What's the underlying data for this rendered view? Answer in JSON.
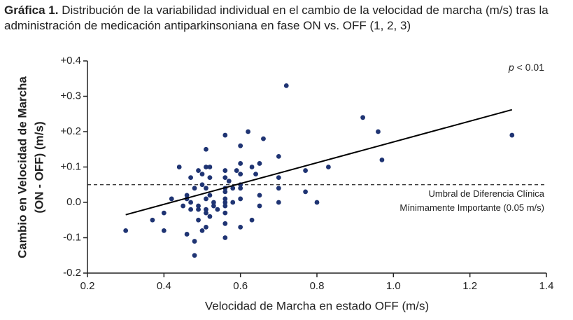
{
  "chart_data": {
    "type": "scatter",
    "title_label": "Gráfica 1.",
    "title": "Distribución de la variabilidad individual en el cambio de la velocidad de marcha (m/s) tras la administración de medicación antiparkinsoniana en fase ON vs. OFF (1, 2, 3)",
    "x_label": "Velocidad de Marcha en estado OFF (m/s)",
    "y_label": [
      "Cambio en Velocidad de Marcha",
      "(ON - OFF) (m/s)"
    ],
    "annotation_symbol": "p",
    "annotation_text": "< 0.01",
    "color": "#1f3473",
    "x": [
      0.3,
      0.37,
      0.4,
      0.4,
      0.42,
      0.44,
      0.45,
      0.46,
      0.46,
      0.46,
      0.47,
      0.47,
      0.47,
      0.48,
      0.48,
      0.48,
      0.49,
      0.49,
      0.49,
      0.49,
      0.5,
      0.5,
      0.5,
      0.51,
      0.51,
      0.51,
      0.51,
      0.51,
      0.51,
      0.51,
      0.52,
      0.52,
      0.52,
      0.52,
      0.53,
      0.53,
      0.54,
      0.56,
      0.56,
      0.56,
      0.56,
      0.56,
      0.56,
      0.56,
      0.56,
      0.56,
      0.56,
      0.56,
      0.57,
      0.58,
      0.58,
      0.59,
      0.6,
      0.6,
      0.6,
      0.6,
      0.6,
      0.6,
      0.6,
      0.62,
      0.63,
      0.63,
      0.64,
      0.65,
      0.65,
      0.65,
      0.66,
      0.7,
      0.7,
      0.7,
      0.7,
      0.72,
      0.77,
      0.77,
      0.8,
      0.83,
      0.92,
      0.96,
      0.97,
      1.31
    ],
    "values": [
      -0.08,
      -0.05,
      -0.03,
      -0.08,
      0.01,
      0.1,
      -0.01,
      0.02,
      -0.09,
      0.01,
      -0.02,
      0.07,
      0.0,
      -0.11,
      -0.15,
      0.04,
      0.09,
      -0.01,
      -0.02,
      -0.05,
      0.05,
      0.08,
      -0.08,
      0.04,
      0.01,
      -0.02,
      0.15,
      0.1,
      -0.07,
      -0.03,
      -0.04,
      0.1,
      0.02,
      0.07,
      0.0,
      -0.01,
      -0.02,
      0.19,
      0.09,
      0.07,
      0.04,
      0.03,
      0.01,
      0.0,
      -0.01,
      -0.03,
      -0.06,
      -0.1,
      0.06,
      0.04,
      0.0,
      0.09,
      0.16,
      0.11,
      0.08,
      0.04,
      0.01,
      -0.07,
      0.05,
      0.2,
      0.1,
      -0.05,
      0.08,
      0.11,
      0.02,
      -0.01,
      0.18,
      0.13,
      0.07,
      0.04,
      0.0,
      0.33,
      0.09,
      0.03,
      0.0,
      0.1,
      0.24,
      0.2,
      0.12,
      0.19
    ],
    "trendline": {
      "x": [
        0.3,
        1.31
      ],
      "values": [
        -0.035,
        0.262
      ],
      "color": "#000000"
    },
    "reference_line": {
      "value": 0.05,
      "label": [
        "Umbral de Diferencia Clínica",
        "Mínimamente Importante (0.05 m/s)"
      ]
    },
    "xlim": [
      0.2,
      1.4
    ],
    "ylim": [
      -0.2,
      0.4
    ],
    "xticks": [
      0.2,
      0.4,
      0.6,
      0.8,
      {
        "value": 1.0,
        "label": "1.0"
      },
      1.2,
      1.4
    ],
    "yticks": [
      {
        "value": -0.2,
        "label": "-0.2"
      },
      {
        "value": -0.1,
        "label": "-0.1"
      },
      {
        "value": 0,
        "label": "0.0"
      },
      {
        "value": 0.1,
        "label": "+0.1"
      },
      {
        "value": 0.2,
        "label": "+0.2"
      },
      {
        "value": 0.3,
        "label": "+0.3"
      },
      {
        "value": 0.4,
        "label": "+0.4"
      }
    ],
    "grid": false
  }
}
